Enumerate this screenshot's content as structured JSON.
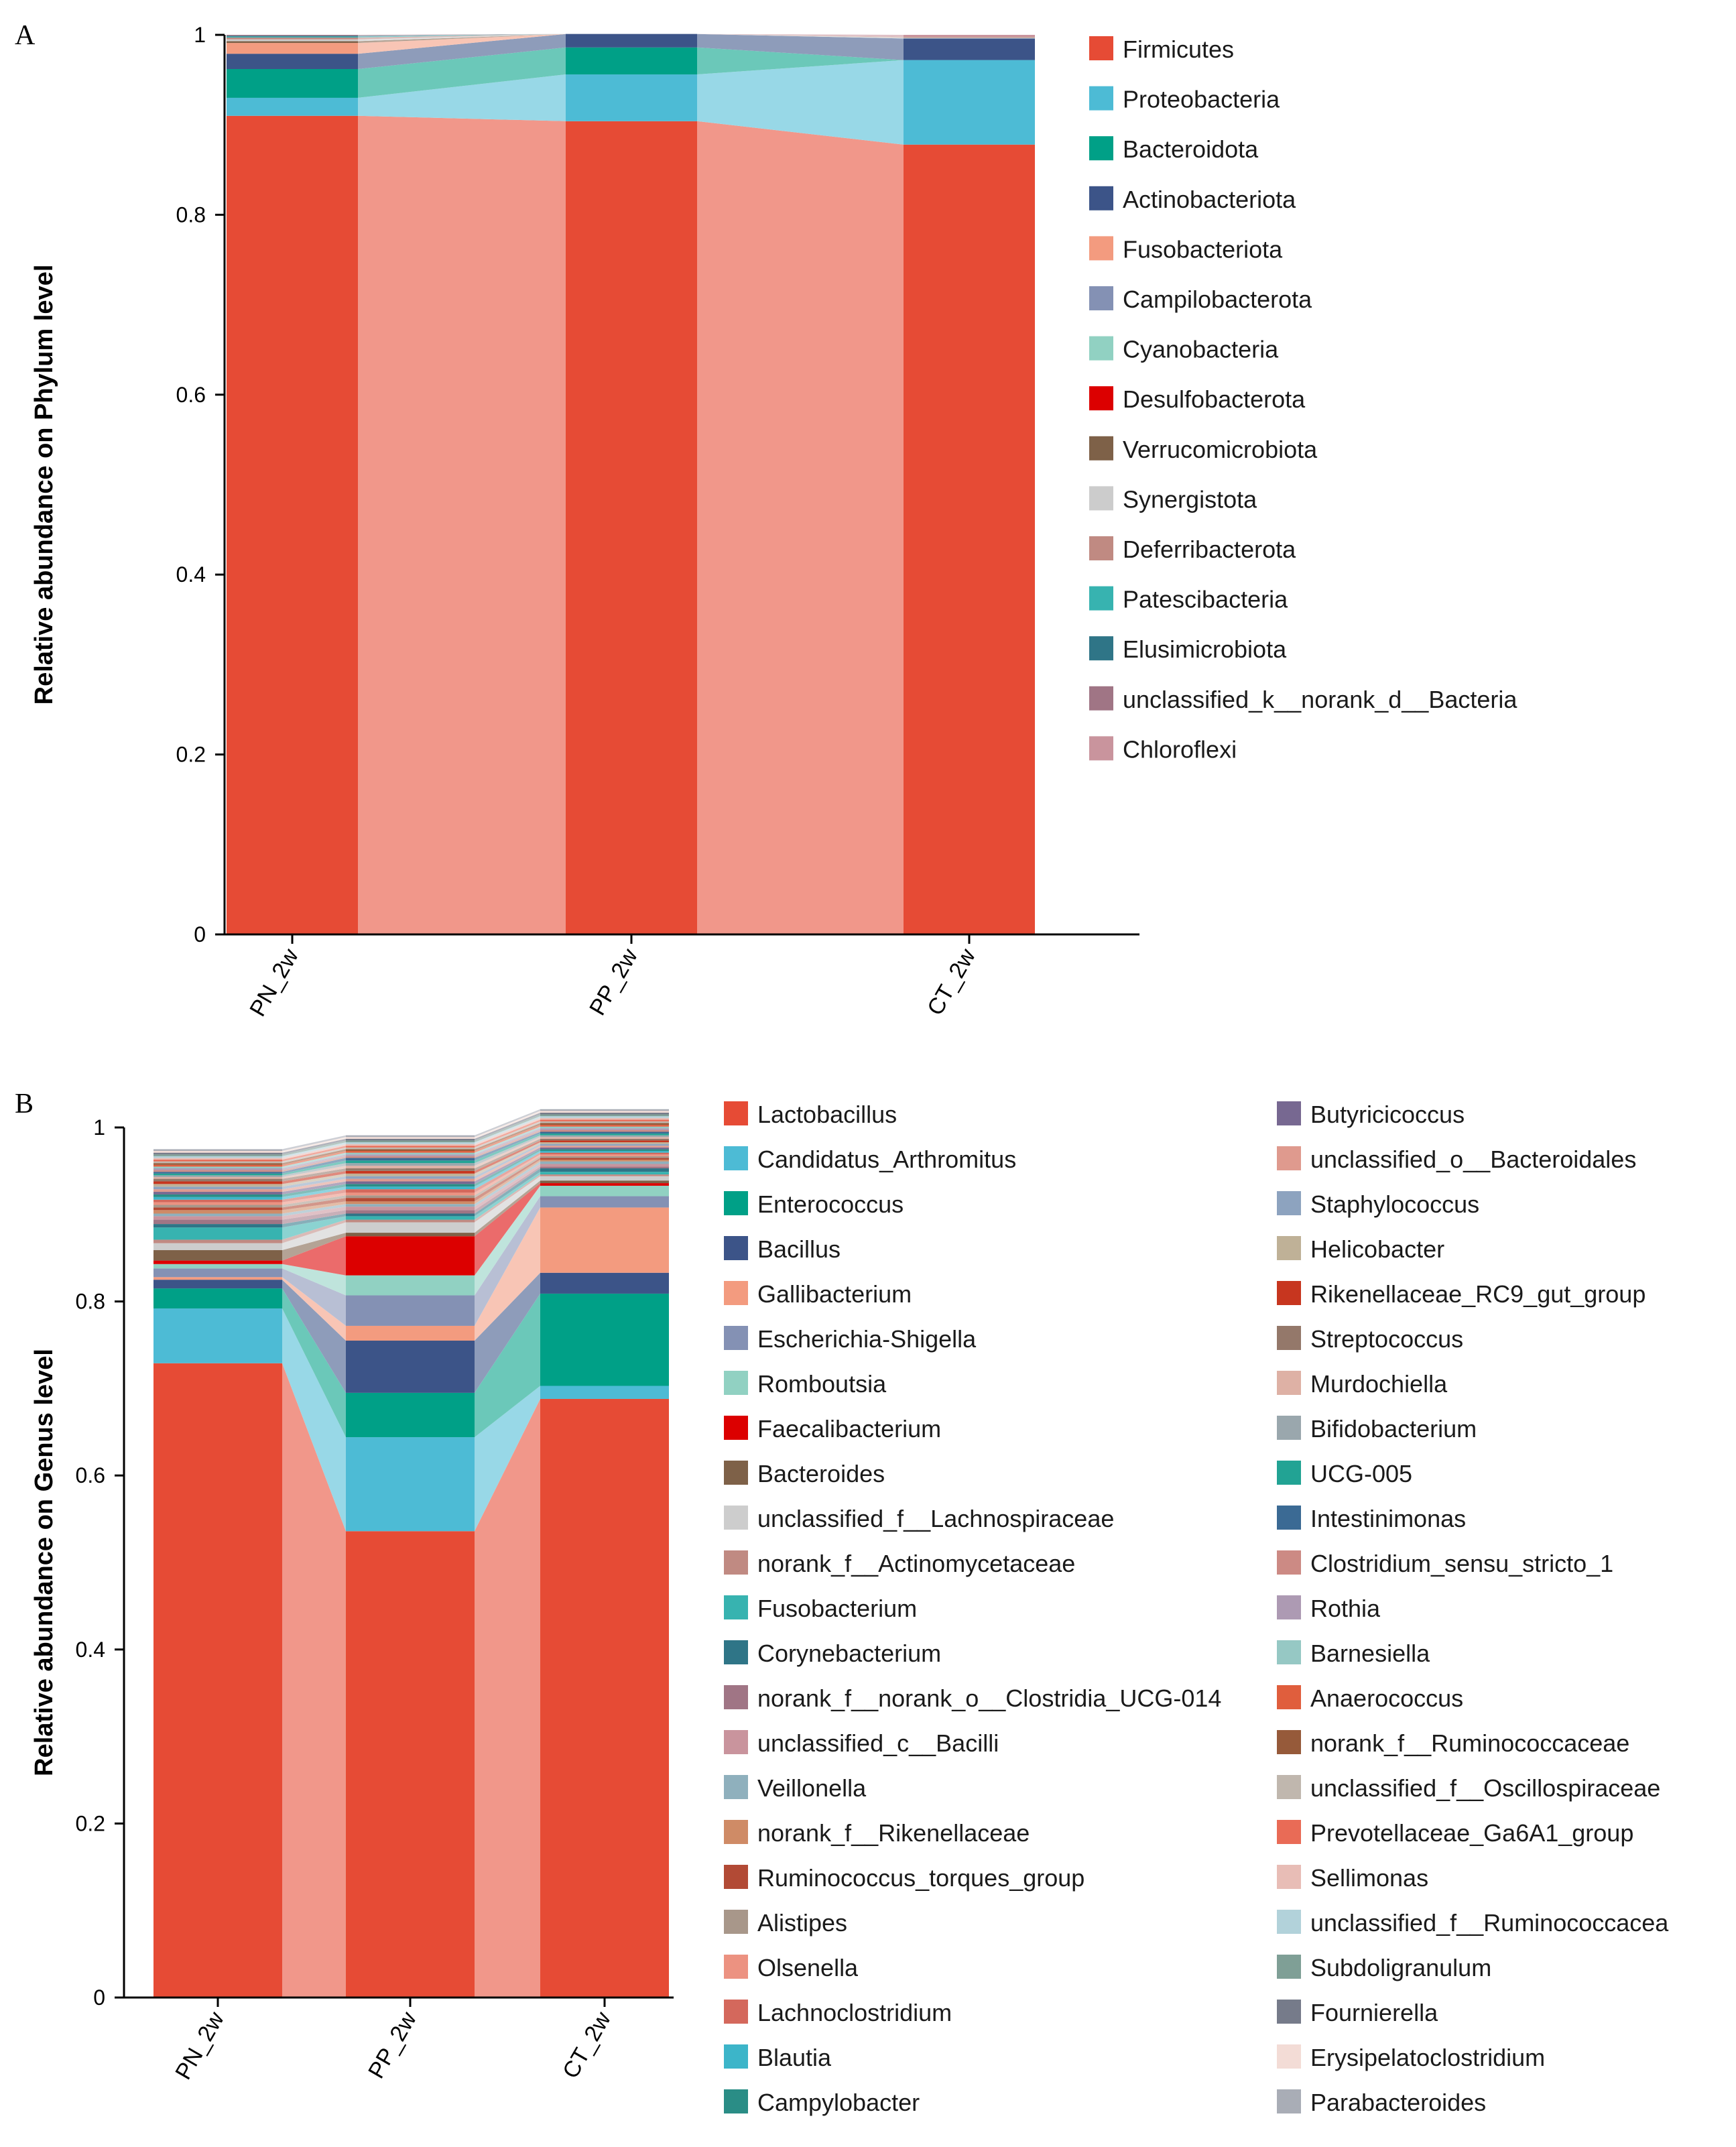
{
  "panels": {
    "A": {
      "letter": "A"
    },
    "B": {
      "letter": "B"
    }
  },
  "chart_data": [
    {
      "type": "bar",
      "subtype": "stacked-100-with-connecting-bands",
      "panel": "A",
      "ylabel": "Relative abundance on Phylum level",
      "xlabel": "",
      "ylim": [
        0,
        1
      ],
      "yticks": [
        0,
        0.2,
        0.4,
        0.6,
        0.8,
        1
      ],
      "yticklabels": [
        "0",
        "0.2",
        "0.4",
        "0.6",
        "0.8",
        "1"
      ],
      "categories": [
        "PN_2w",
        "PP_2w",
        "CT_2w"
      ],
      "legend_position": "right",
      "series": [
        {
          "name": "Firmicutes",
          "color": "#e64b35",
          "values": [
            0.91,
            0.904,
            0.878
          ]
        },
        {
          "name": "Proteobacteria",
          "color": "#4dbbd5",
          "values": [
            0.02,
            0.052,
            0.094
          ]
        },
        {
          "name": "Bacteroidota",
          "color": "#00a087",
          "values": [
            0.032,
            0.03,
            0.0
          ]
        },
        {
          "name": "Actinobacteriota",
          "color": "#3c5488",
          "values": [
            0.017,
            0.015,
            0.024
          ]
        },
        {
          "name": "Fusobacteriota",
          "color": "#f39b7f",
          "values": [
            0.012,
            0.0,
            0.0
          ]
        },
        {
          "name": "Campilobacterota",
          "color": "#8491b4",
          "values": [
            0.0,
            0.0,
            0.0
          ]
        },
        {
          "name": "Cyanobacteria",
          "color": "#91d1c2",
          "values": [
            0.0,
            0.0,
            0.0
          ]
        },
        {
          "name": "Desulfobacterota",
          "color": "#dc0000",
          "values": [
            0.0,
            0.0,
            0.0
          ]
        },
        {
          "name": "Verrucomicrobiota",
          "color": "#7e6148",
          "values": [
            0.002,
            0.0,
            0.0
          ]
        },
        {
          "name": "Synergistota",
          "color": "#cccccc",
          "values": [
            0.002,
            0.0,
            0.001
          ]
        },
        {
          "name": "Deferribacterota",
          "color": "#c08a82",
          "values": [
            0.002,
            0.0,
            0.001
          ]
        },
        {
          "name": "Patescibacteria",
          "color": "#37b3b0",
          "values": [
            0.001,
            0.0,
            0.0
          ]
        },
        {
          "name": "Elusimicrobiota",
          "color": "#2f7587",
          "values": [
            0.001,
            0.0,
            0.0
          ]
        },
        {
          "name": "unclassified_k__norank_d__Bacteria",
          "color": "#a07585",
          "values": [
            0.001,
            0.0,
            0.0
          ]
        },
        {
          "name": "Chloroflexi",
          "color": "#c9949d",
          "values": [
            0.0,
            0.0,
            0.002
          ]
        }
      ]
    },
    {
      "type": "bar",
      "subtype": "stacked-100-with-connecting-bands",
      "panel": "B",
      "ylabel": "Relative abundance on Genus level",
      "xlabel": "",
      "ylim": [
        0,
        1
      ],
      "yticks": [
        0,
        0.2,
        0.4,
        0.6,
        0.8,
        1
      ],
      "yticklabels": [
        "0",
        "0.2",
        "0.4",
        "0.6",
        "0.8",
        "1"
      ],
      "categories": [
        "PN_2w",
        "PP_2w",
        "CT_2w"
      ],
      "legend_position": "right, two columns",
      "series": [
        {
          "name": "Lactobacillus",
          "color": "#e64b35",
          "values": [
            0.729,
            0.536,
            0.688
          ]
        },
        {
          "name": "Candidatus_Arthromitus",
          "color": "#4dbbd5",
          "values": [
            0.063,
            0.108,
            0.015
          ]
        },
        {
          "name": "Enterococcus",
          "color": "#00a087",
          "values": [
            0.023,
            0.051,
            0.106
          ]
        },
        {
          "name": "Bacillus",
          "color": "#3c5488",
          "values": [
            0.01,
            0.06,
            0.024
          ]
        },
        {
          "name": "Gallibacterium",
          "color": "#f39b7f",
          "values": [
            0.003,
            0.017,
            0.075
          ]
        },
        {
          "name": "Escherichia-Shigella",
          "color": "#8491b4",
          "values": [
            0.01,
            0.035,
            0.013
          ]
        },
        {
          "name": "Romboutsia",
          "color": "#91d1c2",
          "values": [
            0.005,
            0.023,
            0.012
          ]
        },
        {
          "name": "Faecalibacterium",
          "color": "#dc0000",
          "values": [
            0.004,
            0.045,
            0.003
          ]
        },
        {
          "name": "Bacteroides",
          "color": "#7e6148",
          "values": [
            0.012,
            0.004,
            0.003
          ]
        },
        {
          "name": "unclassified_f__Lachnospiraceae",
          "color": "#cdcdcd",
          "values": [
            0.008,
            0.012,
            0.005
          ]
        },
        {
          "name": "norank_f__Actinomycetaceae",
          "color": "#c08a82",
          "values": [
            0.004,
            0.003,
            0.002
          ]
        },
        {
          "name": "Fusobacterium",
          "color": "#37b3b0",
          "values": [
            0.014,
            0.004,
            0.003
          ]
        },
        {
          "name": "Corynebacterium",
          "color": "#2f7587",
          "values": [
            0.004,
            0.003,
            0.004
          ]
        },
        {
          "name": "norank_f__norank_o__Clostridia_UCG-014",
          "color": "#a07585",
          "values": [
            0.005,
            0.004,
            0.002
          ]
        },
        {
          "name": "unclassified_c__Bacilli",
          "color": "#c9949d",
          "values": [
            0.004,
            0.004,
            0.003
          ]
        },
        {
          "name": "Veillonella",
          "color": "#8fb0bd",
          "values": [
            0.003,
            0.003,
            0.003
          ]
        },
        {
          "name": "norank_f__Rikenellaceae",
          "color": "#cf8b66",
          "values": [
            0.004,
            0.003,
            0.002
          ]
        },
        {
          "name": "Ruminococcus_torques_group",
          "color": "#b24a35",
          "values": [
            0.003,
            0.004,
            0.002
          ]
        },
        {
          "name": "Alistipes",
          "color": "#a8978a",
          "values": [
            0.003,
            0.003,
            0.002
          ]
        },
        {
          "name": "Olsenella",
          "color": "#ec9281",
          "values": [
            0.003,
            0.003,
            0.002
          ]
        },
        {
          "name": "Lachnoclostridium",
          "color": "#d4685c",
          "values": [
            0.003,
            0.004,
            0.002
          ]
        },
        {
          "name": "Blautia",
          "color": "#3cb5c9",
          "values": [
            0.003,
            0.003,
            0.002
          ]
        },
        {
          "name": "Campylobacter",
          "color": "#2a8d86",
          "values": [
            0.003,
            0.003,
            0.002
          ]
        },
        {
          "name": "Butyricicoccus",
          "color": "#776891",
          "values": [
            0.003,
            0.003,
            0.002
          ]
        },
        {
          "name": "unclassified_o__Bacteroidales",
          "color": "#df9a8e",
          "values": [
            0.003,
            0.003,
            0.002
          ]
        },
        {
          "name": "Staphylococcus",
          "color": "#8da3bf",
          "values": [
            0.003,
            0.003,
            0.002
          ]
        },
        {
          "name": "Helicobacter",
          "color": "#bfb197",
          "values": [
            0.003,
            0.003,
            0.002
          ]
        },
        {
          "name": "Rikenellaceae_RC9_gut_group",
          "color": "#c7361f",
          "values": [
            0.003,
            0.003,
            0.002
          ]
        },
        {
          "name": "Streptococcus",
          "color": "#94786a",
          "values": [
            0.003,
            0.003,
            0.002
          ]
        },
        {
          "name": "Murdochiella",
          "color": "#deb1a5",
          "values": [
            0.002,
            0.003,
            0.002
          ]
        },
        {
          "name": "Bifidobacterium",
          "color": "#9aa7ad",
          "values": [
            0.002,
            0.003,
            0.002
          ]
        },
        {
          "name": "UCG-005",
          "color": "#22a394",
          "values": [
            0.002,
            0.003,
            0.002
          ]
        },
        {
          "name": "Intestinimonas",
          "color": "#3b6a94",
          "values": [
            0.002,
            0.003,
            0.002
          ]
        },
        {
          "name": "Clostridium_sensu_stricto_1",
          "color": "#cc8a84",
          "values": [
            0.002,
            0.002,
            0.002
          ]
        },
        {
          "name": "Rothia",
          "color": "#ad9ab3",
          "values": [
            0.002,
            0.002,
            0.002
          ]
        },
        {
          "name": "Barnesiella",
          "color": "#96c8c4",
          "values": [
            0.002,
            0.002,
            0.002
          ]
        },
        {
          "name": "Anaerococcus",
          "color": "#e05e3d",
          "values": [
            0.002,
            0.002,
            0.002
          ]
        },
        {
          "name": "norank_f__Ruminococcaceae",
          "color": "#965a3a",
          "values": [
            0.002,
            0.002,
            0.002
          ]
        },
        {
          "name": "unclassified_f__Oscillospiraceae",
          "color": "#c0b7ae",
          "values": [
            0.002,
            0.002,
            0.002
          ]
        },
        {
          "name": "Prevotellaceae_Ga6A1_group",
          "color": "#e96b56",
          "values": [
            0.002,
            0.002,
            0.002
          ]
        },
        {
          "name": "Sellimonas",
          "color": "#e8bdb6",
          "values": [
            0.002,
            0.002,
            0.002
          ]
        },
        {
          "name": "unclassified_f__Ruminococcacea",
          "color": "#b2d2da",
          "values": [
            0.002,
            0.002,
            0.002
          ]
        },
        {
          "name": "Subdoligranulum",
          "color": "#7f9f96",
          "values": [
            0.002,
            0.002,
            0.002
          ]
        },
        {
          "name": "Fournierella",
          "color": "#767b8a",
          "values": [
            0.002,
            0.002,
            0.002
          ]
        },
        {
          "name": "Erysipelatoclostridium",
          "color": "#f3dcd6",
          "values": [
            0.002,
            0.002,
            0.002
          ]
        },
        {
          "name": "Parabacteroides",
          "color": "#a9adb6",
          "values": [
            0.002,
            0.002,
            0.002
          ]
        }
      ]
    }
  ]
}
